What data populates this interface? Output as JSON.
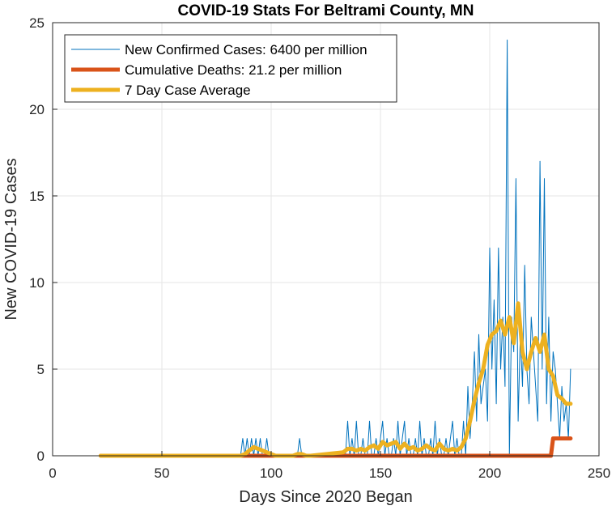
{
  "chart_data": {
    "type": "line",
    "title": "COVID-19 Stats For Beltrami County, MN",
    "xlabel": "Days Since 2020 Began",
    "ylabel": "New COVID-19 Cases",
    "xlim": [
      0,
      250
    ],
    "ylim": [
      0,
      25
    ],
    "xticks": [
      0,
      50,
      100,
      150,
      200,
      250
    ],
    "yticks": [
      0,
      5,
      10,
      15,
      20,
      25
    ],
    "grid": true,
    "legend_position": "top-left",
    "colors": {
      "new_cases": "#0072BD",
      "deaths": "#D95319",
      "avg": "#EDB120"
    },
    "series": [
      {
        "name": "New Confirmed Cases: 6400 per million",
        "key": "new_cases",
        "x": [
          22,
          86,
          87,
          88,
          89,
          90,
          91,
          92,
          93,
          94,
          95,
          96,
          97,
          98,
          99,
          100,
          101,
          112,
          113,
          114,
          133,
          134,
          135,
          136,
          137,
          138,
          139,
          140,
          141,
          142,
          143,
          144,
          145,
          146,
          147,
          148,
          149,
          150,
          151,
          152,
          153,
          154,
          155,
          156,
          157,
          158,
          159,
          160,
          161,
          162,
          163,
          164,
          165,
          166,
          167,
          168,
          169,
          170,
          171,
          172,
          173,
          174,
          175,
          176,
          177,
          178,
          179,
          180,
          181,
          182,
          183,
          184,
          185,
          186,
          187,
          188,
          189,
          190,
          191,
          192,
          193,
          194,
          195,
          196,
          197,
          198,
          199,
          200,
          201,
          202,
          203,
          204,
          205,
          206,
          207,
          208,
          209,
          210,
          211,
          212,
          213,
          214,
          215,
          216,
          217,
          218,
          219,
          220,
          221,
          222,
          223,
          224,
          225,
          226,
          227,
          228,
          229,
          230,
          231,
          232,
          233,
          234,
          235,
          236,
          237
        ],
        "y": [
          0,
          0,
          1,
          0,
          1,
          0,
          1,
          0,
          1,
          0,
          1,
          0,
          0,
          1,
          0,
          0,
          0,
          0,
          1,
          0,
          0,
          0,
          2,
          0,
          1,
          0,
          2,
          0,
          0,
          1,
          0,
          0,
          2,
          0,
          0,
          1,
          0,
          1,
          2,
          0,
          1,
          0,
          0,
          1,
          0,
          2,
          0,
          1,
          2,
          0,
          1,
          0,
          0,
          1,
          0,
          2,
          0,
          1,
          0,
          0,
          1,
          0,
          2,
          0,
          1,
          0,
          0,
          1,
          0,
          1,
          2,
          0,
          1,
          0,
          0,
          2,
          0,
          4,
          1,
          3,
          6,
          2,
          7,
          3,
          4,
          5,
          2,
          12,
          5,
          9,
          3,
          12,
          5,
          8,
          4,
          24,
          0,
          8,
          6,
          16,
          2,
          7,
          4,
          11,
          5,
          3,
          8,
          6,
          4,
          2,
          17,
          5,
          16,
          3,
          8,
          2,
          6,
          5,
          3,
          1,
          4,
          2,
          3,
          1,
          5
        ]
      },
      {
        "name": "Cumulative Deaths: 21.2 per million",
        "key": "deaths",
        "x": [
          22,
          228,
          229,
          230,
          237
        ],
        "y": [
          0,
          0,
          1,
          1,
          1
        ]
      },
      {
        "name": "7 Day Case Average",
        "key": "avg",
        "x": [
          22,
          86,
          88,
          90,
          92,
          94,
          96,
          98,
          100,
          102,
          110,
          112,
          114,
          116,
          118,
          133,
          135,
          137,
          139,
          141,
          143,
          145,
          147,
          149,
          151,
          153,
          155,
          157,
          159,
          161,
          163,
          165,
          167,
          169,
          171,
          173,
          175,
          177,
          179,
          181,
          183,
          185,
          187,
          189,
          191,
          193,
          195,
          197,
          199,
          201,
          203,
          205,
          207,
          209,
          211,
          213,
          215,
          217,
          219,
          221,
          223,
          225,
          227,
          229,
          231,
          233,
          235,
          237
        ],
        "y": [
          0,
          0,
          0.1,
          0.3,
          0.5,
          0.4,
          0.3,
          0.2,
          0.1,
          0,
          0,
          0.1,
          0.1,
          0,
          0,
          0.2,
          0.4,
          0.4,
          0.3,
          0.4,
          0.3,
          0.5,
          0.6,
          0.4,
          0.8,
          0.6,
          0.7,
          0.8,
          0.4,
          0.7,
          0.4,
          0.5,
          0.3,
          0.4,
          0.6,
          0.4,
          0.3,
          0.7,
          0.4,
          0.3,
          0.4,
          0.3,
          0.5,
          1.0,
          2.0,
          3.2,
          4.2,
          5.0,
          6.4,
          7.0,
          7.2,
          7.8,
          7.0,
          8.0,
          6.5,
          8.8,
          6.0,
          5.0,
          6.0,
          6.8,
          6.0,
          7.0,
          5.0,
          4.6,
          3.5,
          3.3,
          3.0,
          3.0
        ]
      }
    ]
  }
}
